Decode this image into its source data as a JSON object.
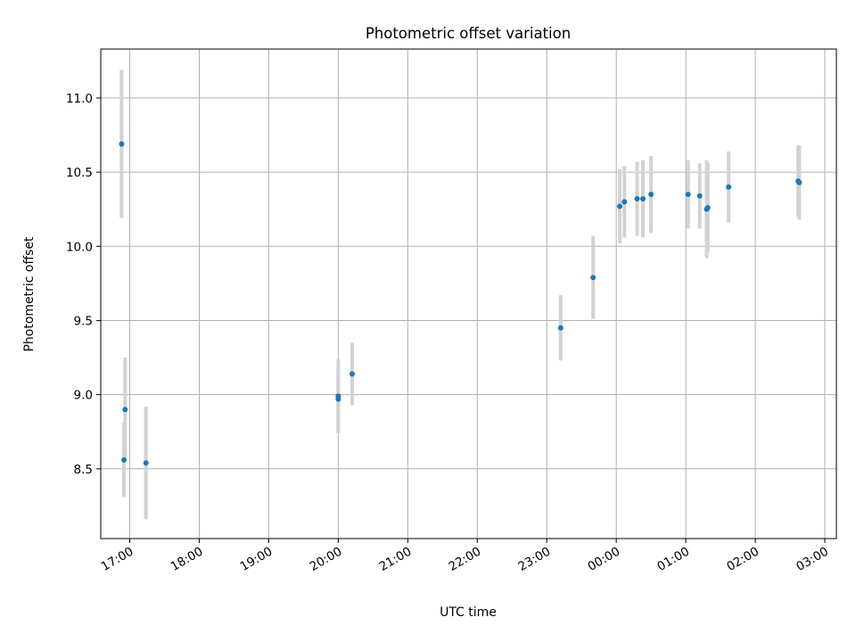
{
  "chart_data": {
    "type": "scatter",
    "title": "Photometric offset variation",
    "xlabel": "UTC time",
    "ylabel": "Photometric offset",
    "x_axis_kind": "time",
    "xlim": [
      "16:35",
      "03:10"
    ],
    "ylim": [
      8.03,
      11.33
    ],
    "yticks": [
      8.5,
      9.0,
      9.5,
      10.0,
      10.5,
      11.0
    ],
    "ytick_labels": [
      "8.5",
      "9.0",
      "9.5",
      "10.0",
      "10.5",
      "11.0"
    ],
    "xticks": [
      "17:00",
      "18:00",
      "19:00",
      "20:00",
      "21:00",
      "22:00",
      "23:00",
      "00:00",
      "01:00",
      "02:00",
      "03:00"
    ],
    "grid": true,
    "marker_color": "#1f77b4",
    "errorbar_color": "#d3d3d3",
    "points": [
      {
        "t": "16:53",
        "y": 10.69,
        "err": 0.5
      },
      {
        "t": "16:55",
        "y": 8.56,
        "err": 0.25
      },
      {
        "t": "16:56",
        "y": 8.9,
        "err": 0.35
      },
      {
        "t": "17:14",
        "y": 8.54,
        "err": 0.38
      },
      {
        "t": "20:00",
        "y": 8.99,
        "err": 0.25
      },
      {
        "t": "20:00",
        "y": 8.97,
        "err": 0.23
      },
      {
        "t": "20:12",
        "y": 9.14,
        "err": 0.21
      },
      {
        "t": "23:12",
        "y": 9.45,
        "err": 0.22
      },
      {
        "t": "23:40",
        "y": 9.79,
        "err": 0.28
      },
      {
        "t": "00:03",
        "y": 10.27,
        "err": 0.25
      },
      {
        "t": "00:07",
        "y": 10.3,
        "err": 0.24
      },
      {
        "t": "00:18",
        "y": 10.32,
        "err": 0.25
      },
      {
        "t": "00:23",
        "y": 10.32,
        "err": 0.26
      },
      {
        "t": "00:30",
        "y": 10.35,
        "err": 0.26
      },
      {
        "t": "01:02",
        "y": 10.35,
        "err": 0.23
      },
      {
        "t": "01:12",
        "y": 10.34,
        "err": 0.22
      },
      {
        "t": "01:18",
        "y": 10.25,
        "err": 0.33
      },
      {
        "t": "01:19",
        "y": 10.26,
        "err": 0.3
      },
      {
        "t": "01:37",
        "y": 10.4,
        "err": 0.24
      },
      {
        "t": "02:37",
        "y": 10.44,
        "err": 0.24
      },
      {
        "t": "02:38",
        "y": 10.43,
        "err": 0.25
      }
    ]
  }
}
